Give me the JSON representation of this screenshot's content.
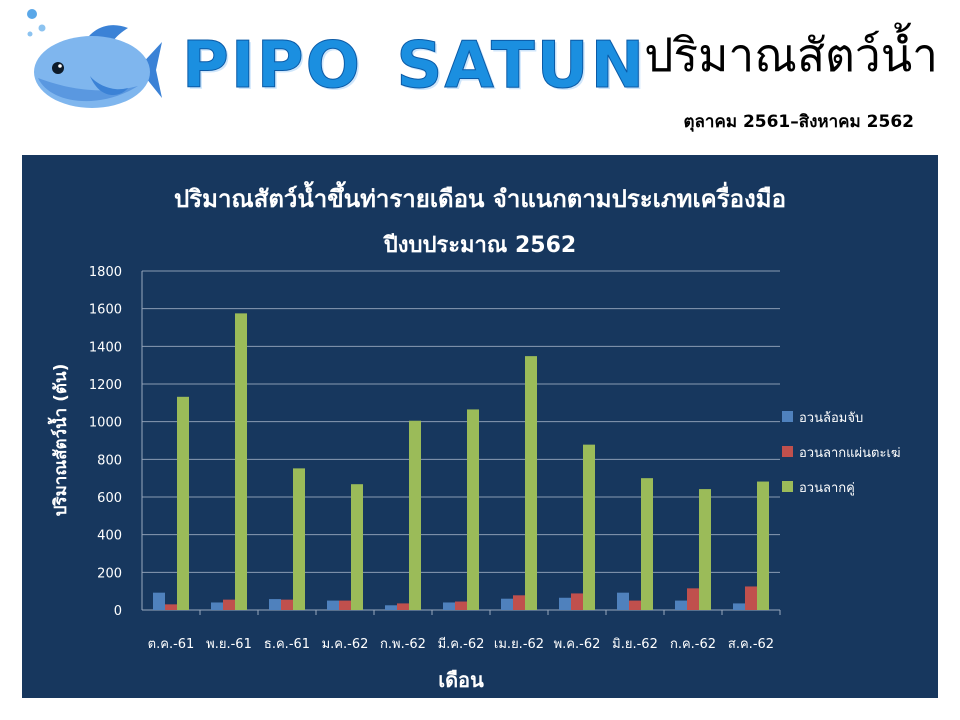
{
  "header": {
    "brand": "PIPO  SATUN",
    "title": "ปริมาณสัตว์น้ำ",
    "subtitle": "ตุลาคม 2561–สิงหาคม 2562",
    "logo_icon": "fish-logo-icon"
  },
  "colors": {
    "panel_bg": "#17375e",
    "brand": "#1b8fe0",
    "series": [
      "#4f81bd",
      "#c0504d",
      "#9bbb59"
    ]
  },
  "chart_data": {
    "type": "bar",
    "title": "ปริมาณสัตว์น้ำขึ้นท่ารายเดือน จำแนกตามประเภทเครื่องมือ",
    "subtitle": "ปีงบประมาณ 2562",
    "xlabel": "เดือน",
    "ylabel": "ปริมาณสัตว์น้ำ (ตัน)",
    "ylim": [
      0,
      1800
    ],
    "yticks": [
      0,
      200,
      400,
      600,
      800,
      1000,
      1200,
      1400,
      1600,
      1800
    ],
    "grid": true,
    "legend_position": "right",
    "categories": [
      "ต.ค.-61",
      "พ.ย.-61",
      "ธ.ค.-61",
      "ม.ค.-62",
      "ก.พ.-62",
      "มี.ค.-62",
      "เม.ย.-62",
      "พ.ค.-62",
      "มิ.ย.-62",
      "ก.ค.-62",
      "ส.ค.-62"
    ],
    "series": [
      {
        "name": "อวนล้อมจับ",
        "values": [
          92,
          40,
          58,
          50,
          25,
          40,
          60,
          65,
          92,
          50,
          35
        ]
      },
      {
        "name": "อวนลากแผ่นตะเฆ่",
        "values": [
          30,
          55,
          55,
          50,
          35,
          45,
          78,
          88,
          50,
          115,
          125
        ]
      },
      {
        "name": "อวนลากคู่",
        "values": [
          1132,
          1575,
          752,
          668,
          1005,
          1065,
          1348,
          878,
          700,
          642,
          682
        ]
      }
    ]
  }
}
